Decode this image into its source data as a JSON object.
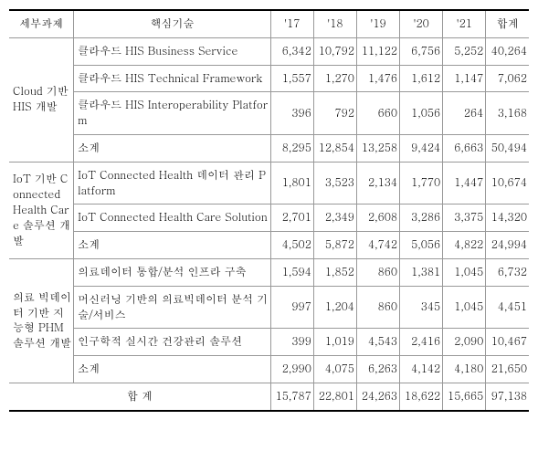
{
  "headers": {
    "task": "세부과제",
    "tech": "핵심기술",
    "y17": "'17",
    "y18": "'18",
    "y19": "'19",
    "y20": "'20",
    "y21": "'21",
    "sum": "합계"
  },
  "groups": [
    {
      "task": "Cloud 기반 HIS 개발",
      "rows": [
        {
          "tech": "클라우드 HIS Business Service",
          "y17": "6,342",
          "y18": "10,792",
          "y19": "11,122",
          "y20": "6,756",
          "y21": "5,252",
          "sum": "40,264"
        },
        {
          "tech": "클라우드 HIS Technical Framework",
          "y17": "1,557",
          "y18": "1,270",
          "y19": "1,476",
          "y20": "1,612",
          "y21": "1,147",
          "sum": "7,062"
        },
        {
          "tech": "클라우드 HIS Interoperability Platform",
          "y17": "396",
          "y18": "792",
          "y19": "660",
          "y20": "1,056",
          "y21": "264",
          "sum": "3,168"
        },
        {
          "tech": "소계",
          "y17": "8,295",
          "y18": "12,854",
          "y19": "13,258",
          "y20": "9,424",
          "y21": "6,663",
          "sum": "50,494"
        }
      ]
    },
    {
      "task": "IoT 기반 Connected Health Care 솔루션 개발",
      "rows": [
        {
          "tech": "IoT Connected  Health 데이터 관리 Platform",
          "y17": "1,801",
          "y18": "3,523",
          "y19": "2,134",
          "y20": "1,770",
          "y21": "1,447",
          "sum": "10,674"
        },
        {
          "tech": "IoT Connected Health Care Solution",
          "y17": "2,701",
          "y18": "2,349",
          "y19": "2,608",
          "y20": "3,286",
          "y21": "3,375",
          "sum": "14,320"
        },
        {
          "tech": "소계",
          "y17": "4,502",
          "y18": "5,872",
          "y19": "4,742",
          "y20": "5,056",
          "y21": "4,822",
          "sum": "24,994"
        }
      ]
    },
    {
      "task": "의료 빅데이터 기반 지능형 PHM 솔루션 개발",
      "rows": [
        {
          "tech": "의료데이터 통합/분석 인프라  구축",
          "y17": "1,594",
          "y18": "1,852",
          "y19": "860",
          "y20": "1,381",
          "y21": "1,045",
          "sum": "6,732"
        },
        {
          "tech": "머신러닝 기반의 의료빅데이터 분석 기술/서비스",
          "y17": "997",
          "y18": "1,204",
          "y19": "860",
          "y20": "345",
          "y21": "1,045",
          "sum": "4,451"
        },
        {
          "tech": "인구학적 실시간 건강관리 솔루션",
          "y17": "399",
          "y18": "1,019",
          "y19": "4,543",
          "y20": "2,416",
          "y21": "2,090",
          "sum": "10,467"
        },
        {
          "tech": "소계",
          "y17": "2,990",
          "y18": "4,075",
          "y19": "6,263",
          "y20": "4,142",
          "y21": "4,180",
          "sum": "21,650"
        }
      ]
    }
  ],
  "total": {
    "label": "합   계",
    "y17": "15,787",
    "y18": "22,801",
    "y19": "24,263",
    "y20": "18,622",
    "y21": "15,665",
    "sum": "97,138"
  }
}
